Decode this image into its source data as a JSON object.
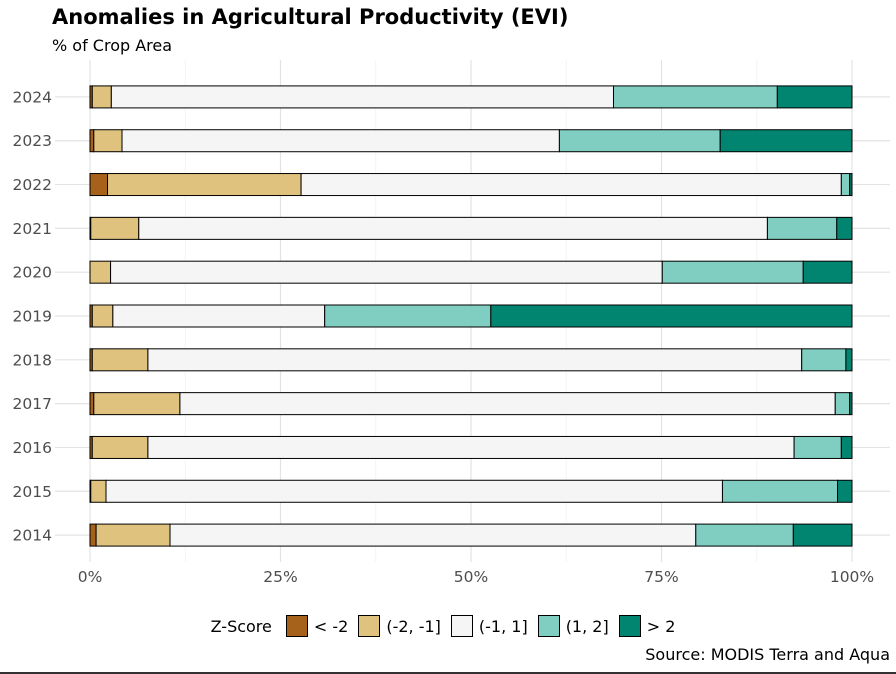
{
  "chart_data": {
    "type": "bar",
    "orientation": "horizontal",
    "stacked": true,
    "title": "Anomalies in Agricultural Productivity (EVI)",
    "subtitle": "% of Crop Area",
    "xlabel": "",
    "ylabel": "",
    "xlim": [
      0,
      100
    ],
    "x_ticks": [
      "0%",
      "25%",
      "50%",
      "75%",
      "100%"
    ],
    "x_tick_values": [
      0,
      25,
      50,
      75,
      100
    ],
    "grid": true,
    "legend": {
      "title": "Z-Score",
      "position": "bottom"
    },
    "categories": [
      "2024",
      "2023",
      "2022",
      "2021",
      "2020",
      "2019",
      "2018",
      "2017",
      "2016",
      "2015",
      "2014"
    ],
    "series": [
      {
        "name": "< -2",
        "color": "#A6611A",
        "values": [
          0.3,
          0.5,
          2.3,
          0.1,
          0.0,
          0.3,
          0.3,
          0.5,
          0.3,
          0.1,
          0.8
        ]
      },
      {
        "name": "(-2, -1]",
        "color": "#DFC27D",
        "values": [
          2.5,
          3.7,
          25.4,
          6.3,
          2.7,
          2.7,
          7.3,
          11.3,
          7.3,
          2.0,
          9.7
        ]
      },
      {
        "name": "(-1, 1]",
        "color": "#F5F5F5",
        "values": [
          65.9,
          57.4,
          70.9,
          82.5,
          72.4,
          27.8,
          85.8,
          86.0,
          84.8,
          80.9,
          69.0
        ]
      },
      {
        "name": "(1, 2]",
        "color": "#80CDC1",
        "values": [
          21.5,
          21.1,
          1.1,
          9.1,
          18.5,
          21.8,
          5.8,
          1.9,
          6.2,
          15.1,
          12.8
        ]
      },
      {
        "name": "> 2",
        "color": "#018571",
        "values": [
          9.8,
          17.3,
          0.3,
          2.0,
          6.4,
          47.4,
          0.8,
          0.3,
          1.4,
          1.9,
          7.7
        ]
      }
    ]
  },
  "source": "Source: MODIS Terra and Aqua"
}
